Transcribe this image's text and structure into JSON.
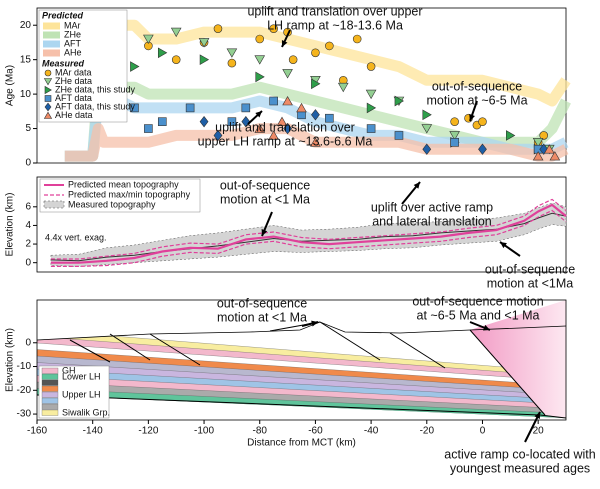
{
  "chart_data": [
    {
      "type": "line",
      "ylabel": "Age (Ma)",
      "xlim": [
        -160,
        30
      ],
      "ylim": [
        0,
        22.5
      ],
      "yticks": [
        0,
        5,
        10,
        15,
        20
      ],
      "legend_headings": [
        "Predicted",
        "Measured"
      ],
      "x": [
        -150,
        -140,
        -138,
        -136,
        -130,
        -125,
        -120,
        -110,
        -100,
        -90,
        -80,
        -70,
        -60,
        -50,
        -40,
        -30,
        -20,
        -10,
        0,
        10,
        20,
        25,
        30
      ],
      "series": [
        {
          "name": "MAr",
          "color": "#fde49a",
          "values": [
            null,
            null,
            null,
            20,
            20,
            20,
            18,
            18,
            19,
            19,
            19,
            18,
            17,
            16,
            15,
            14,
            12,
            12,
            12,
            11,
            10,
            9,
            12
          ]
        },
        {
          "name": "ZHe",
          "color": "#bfe3b4",
          "values": [
            1,
            1,
            12,
            12,
            11,
            11,
            10,
            10,
            10,
            10,
            11,
            10,
            9,
            8,
            7,
            6,
            5,
            4,
            3,
            3,
            3,
            5,
            9
          ]
        },
        {
          "name": "AFT",
          "color": "#acd6f0",
          "values": [
            1,
            1,
            10,
            10,
            9,
            8,
            8,
            8,
            8,
            8,
            9,
            8,
            6,
            5,
            4,
            4,
            3,
            3,
            3,
            2,
            2,
            2,
            3
          ]
        },
        {
          "name": "AHe",
          "color": "#f6c0aa",
          "values": [
            1,
            1,
            5,
            3,
            3,
            3,
            3,
            4,
            4,
            4,
            5,
            5,
            3,
            3,
            3,
            3,
            2,
            2,
            2,
            2,
            1,
            1,
            2
          ]
        }
      ],
      "points": [
        {
          "name": "MAr data",
          "color": "#f5b41c",
          "marker": "circle",
          "x": [
            -120,
            -110,
            -100,
            -95,
            -90,
            -80,
            -75,
            -70,
            -68,
            -60,
            -55,
            -50,
            -45,
            -40,
            -10,
            -5,
            -2,
            0,
            20,
            22
          ],
          "y": [
            17,
            15,
            17.5,
            19.5,
            14.5,
            18,
            19.5,
            19,
            15,
            16,
            17,
            12,
            18,
            14,
            6,
            6.5,
            5.5,
            6,
            3,
            4
          ]
        },
        {
          "name": "ZHe data",
          "color": "#93cf92",
          "marker": "tri-down",
          "x": [
            -120,
            -110,
            -100,
            -90,
            -80,
            -70,
            -60,
            -50,
            -40,
            -30,
            -20,
            -10,
            20,
            24
          ],
          "y": [
            18,
            19,
            17.5,
            16,
            15,
            13,
            12,
            11,
            10,
            9,
            5,
            4,
            3,
            2
          ]
        },
        {
          "name": "ZHe data, this study",
          "color": "#2e9e4a",
          "marker": "tri-right",
          "x": [
            -140,
            -130,
            -125,
            -115,
            -100,
            -80,
            -60,
            -40,
            -30,
            -20,
            -10,
            10,
            20
          ],
          "y": [
            17,
            19,
            14,
            16,
            15,
            12.5,
            11.5,
            8,
            9,
            7,
            3,
            4,
            2
          ]
        },
        {
          "name": "AFT data",
          "color": "#4b90cc",
          "marker": "square",
          "x": [
            -150,
            -135,
            -125,
            -120,
            -115,
            -105,
            -90,
            -85,
            -75,
            -65,
            -55,
            -40,
            -30,
            -10,
            20
          ],
          "y": [
            15,
            16,
            8,
            5,
            6,
            8,
            6,
            8,
            9,
            7,
            6.5,
            5,
            4,
            3,
            2
          ]
        },
        {
          "name": "AFT data, this study",
          "color": "#1f5fa6",
          "marker": "diamond",
          "x": [
            -100,
            -95,
            -85,
            -70,
            -60,
            -20,
            0,
            22
          ],
          "y": [
            6,
            4,
            6,
            5,
            7,
            2,
            2,
            2
          ]
        },
        {
          "name": "AHe data",
          "color": "#ee8a66",
          "marker": "tri-up",
          "x": [
            -80,
            -75,
            -72,
            -70,
            -65,
            -60,
            20,
            24,
            26
          ],
          "y": [
            5,
            4,
            6,
            9,
            8,
            3,
            1,
            2,
            1
          ]
        }
      ],
      "annotations": [
        {
          "lines": [
            "uplift and translation over upper",
            "LH ramp at ~18-13.6 Ma"
          ]
        },
        {
          "lines": [
            "out-of-sequence",
            "motion at ~6-5 Ma"
          ]
        },
        {
          "lines": [
            "uplift and translation over",
            "upper LH ramp at ~13.6-6.6 Ma"
          ]
        }
      ]
    },
    {
      "type": "line",
      "ylabel": "Elevation (km)",
      "xlim": [
        -160,
        30
      ],
      "ylim": [
        -1,
        9.2
      ],
      "yticks": [
        0,
        2,
        4,
        6
      ],
      "note": "4.4x vert. exag.",
      "x": [
        -155,
        -145,
        -135,
        -125,
        -115,
        -105,
        -95,
        -85,
        -75,
        -65,
        -55,
        -45,
        -35,
        -25,
        -15,
        -5,
        5,
        15,
        20,
        25,
        30
      ],
      "series": [
        {
          "name": "Predicted mean topography",
          "color": "#e0409a",
          "values": [
            0,
            0,
            0.2,
            0.5,
            1.2,
            1.6,
            1.5,
            2.5,
            2.8,
            2.2,
            2.0,
            2.2,
            2.4,
            2.6,
            2.8,
            3.2,
            3.5,
            4.5,
            5.5,
            6.2,
            5.0
          ]
        },
        {
          "name": "Predicted max/min topography",
          "color": "#e0409a",
          "high": [
            0.4,
            0.4,
            0.7,
            1.0,
            1.7,
            2.1,
            2.0,
            3.0,
            3.3,
            2.7,
            2.5,
            2.7,
            2.9,
            3.1,
            3.3,
            3.7,
            4.0,
            5.0,
            6.1,
            6.8,
            5.6
          ],
          "low": [
            -0.4,
            -0.4,
            -0.3,
            0,
            0.7,
            1.1,
            1.0,
            2.0,
            2.3,
            1.7,
            1.5,
            1.7,
            1.9,
            2.1,
            2.3,
            2.7,
            3.0,
            4.0,
            4.9,
            5.6,
            4.4
          ]
        },
        {
          "name": "Measured topography",
          "color": "#9a9a9a",
          "values": [
            0.3,
            0.2,
            0.6,
            0.8,
            1.2,
            1.5,
            1.8,
            2.2,
            2.6,
            2.3,
            2.4,
            2.5,
            2.8,
            2.9,
            3.2,
            3.4,
            3.6,
            4.2,
            4.8,
            5.3,
            5.0
          ],
          "high": [
            0.8,
            0.9,
            1.6,
            1.9,
            2.4,
            2.9,
            3.2,
            3.6,
            4.0,
            3.5,
            3.6,
            3.8,
            4.2,
            4.3,
            4.4,
            4.6,
            4.8,
            5.3,
            5.9,
            6.4,
            6.0
          ],
          "low": [
            -0.3,
            -0.4,
            -0.2,
            0,
            0.2,
            0.4,
            0.6,
            0.9,
            1.2,
            1.1,
            1.2,
            1.3,
            1.5,
            1.6,
            1.9,
            2.1,
            2.3,
            3.0,
            3.6,
            4.1,
            3.9
          ]
        }
      ],
      "annotations": [
        {
          "lines": [
            "out-of-sequence",
            "motion at <1 Ma"
          ]
        },
        {
          "lines": [
            "uplift over active ramp",
            "and lateral translation"
          ]
        },
        {
          "lines": [
            "out-of-sequence",
            "motion at <1Ma"
          ]
        }
      ]
    },
    {
      "type": "cross-section",
      "ylabel": "Elevation (km)",
      "xlabel": "Distance from MCT (km)",
      "xlim": [
        -160,
        30
      ],
      "xticks": [
        -160,
        -140,
        -120,
        -100,
        -80,
        -60,
        -40,
        -20,
        0,
        20
      ],
      "ylim": [
        -32.5,
        18
      ],
      "yticks": [
        0,
        -10,
        -20,
        -30
      ],
      "legend": [
        "GH",
        "Lower LH",
        "Upper LH",
        "Siwalik Grp."
      ],
      "annotations": [
        {
          "lines": [
            "out-of-sequence",
            "motion at <1 Ma"
          ]
        },
        {
          "lines": [
            "out-of-sequence motion",
            "at ~6-5 Ma and <1 Ma"
          ]
        },
        {
          "lines": [
            "active ramp co-located with",
            "youngest measured ages"
          ]
        }
      ]
    }
  ]
}
